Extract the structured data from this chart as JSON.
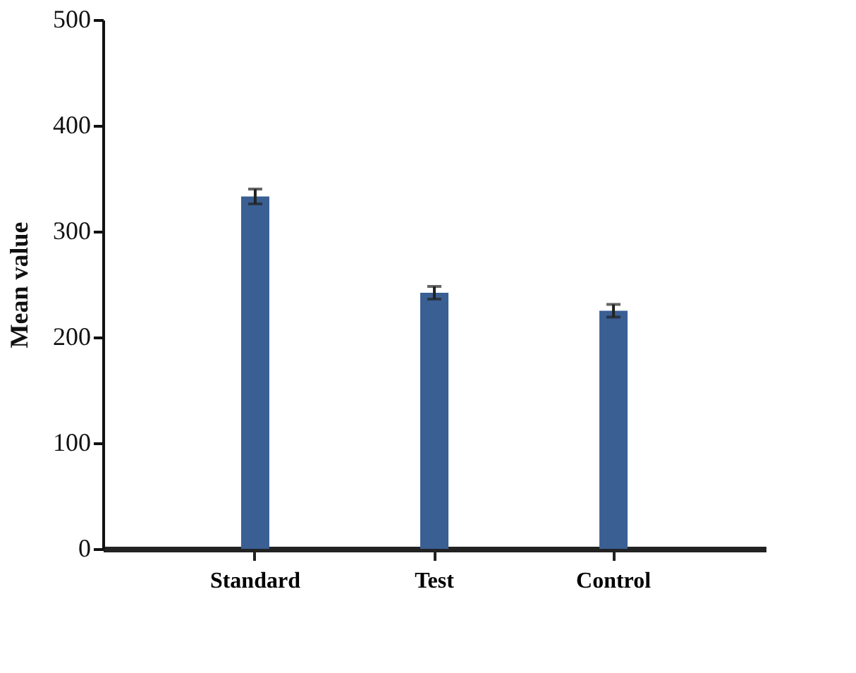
{
  "chart_data": {
    "type": "bar",
    "ylabel": "Mean value",
    "categories": [
      "Standard",
      "Test",
      "Control"
    ],
    "values": [
      333,
      242,
      225
    ],
    "errors": [
      7,
      6,
      6
    ],
    "color": "#3a5f93",
    "ylim": [
      0,
      500
    ],
    "yticks": [
      0,
      100,
      200,
      300,
      400,
      500
    ],
    "grid": false
  }
}
